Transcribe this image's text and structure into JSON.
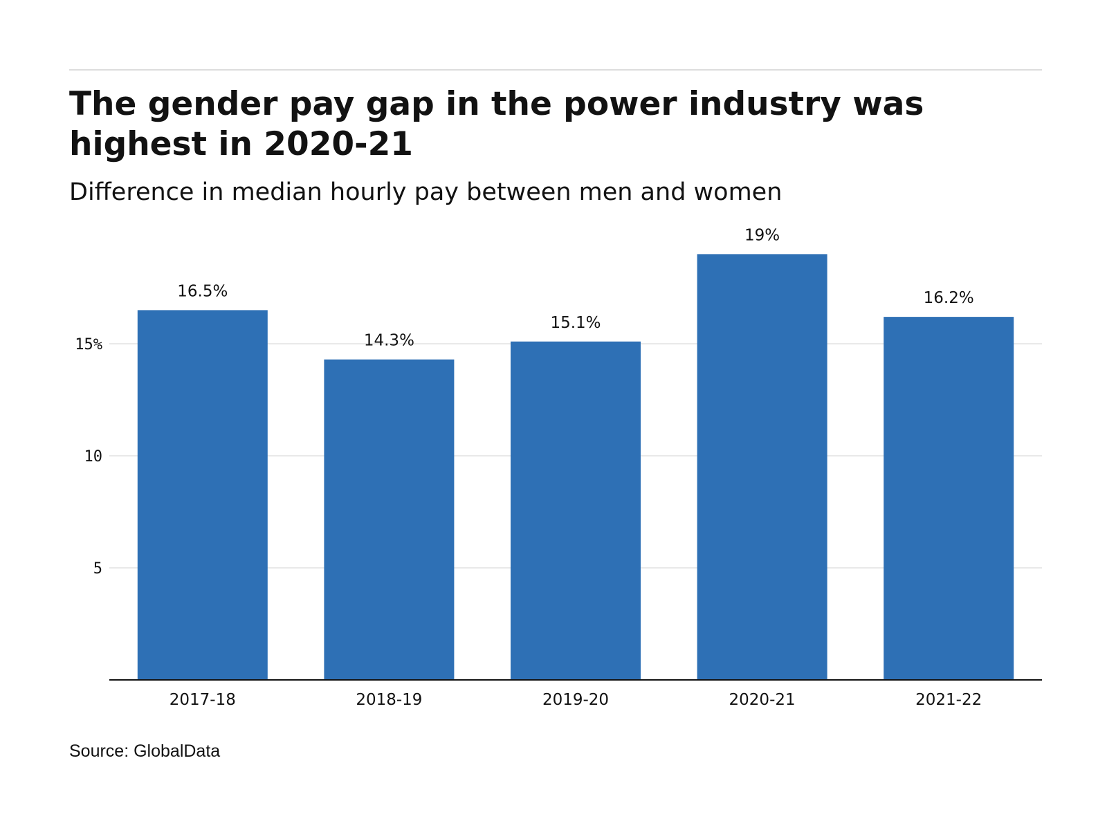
{
  "header": {
    "title": "The gender pay gap in the power industry was highest in 2020-21",
    "subtitle": "Difference in median hourly pay between men and women"
  },
  "footer": {
    "source": "Source: GlobalData"
  },
  "colors": {
    "bar": "#2e70b5",
    "gridline": "#e2e2e2",
    "baseline": "#121212",
    "top_rule": "#dddddd"
  },
  "chart_data": {
    "type": "bar",
    "title": "The gender pay gap in the power industry was highest in 2020-21",
    "subtitle": "Difference in median hourly pay between men and women",
    "categories": [
      "2017-18",
      "2018-19",
      "2019-20",
      "2020-21",
      "2021-22"
    ],
    "values": [
      16.5,
      14.3,
      15.1,
      19,
      16.2
    ],
    "data_labels": [
      "16.5%",
      "14.3%",
      "15.1%",
      "19%",
      "16.2%"
    ],
    "y_ticks": [
      5,
      10,
      15
    ],
    "y_tick_labels": [
      "5",
      "10",
      "15%"
    ],
    "ylim": [
      0,
      19
    ],
    "xlabel": "",
    "ylabel": "",
    "grid": true,
    "legend": "none"
  }
}
